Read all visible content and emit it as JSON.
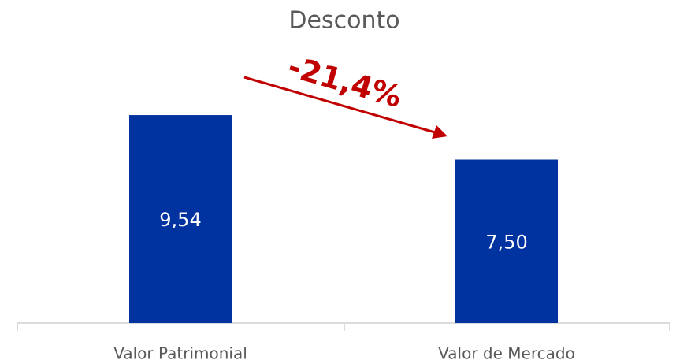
{
  "chart_data": {
    "type": "bar",
    "title": "Desconto",
    "categories": [
      "Valor Patrimonial",
      "Valor de Mercado"
    ],
    "values": [
      9.54,
      7.5
    ],
    "value_labels": [
      "9,54",
      "7,50"
    ],
    "color": "#0033a0",
    "ylim": [
      0,
      12
    ],
    "annotation": "-21,4%",
    "annotation_color": "#c00000"
  }
}
